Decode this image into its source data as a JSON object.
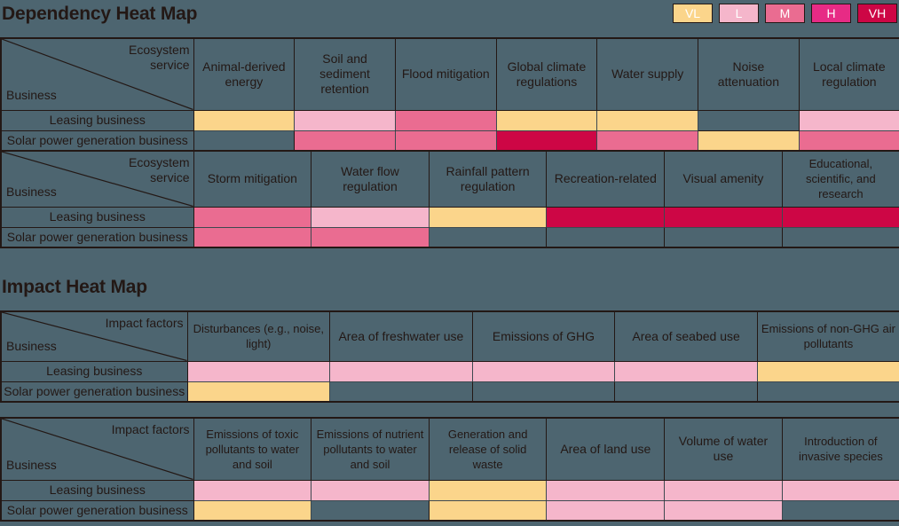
{
  "colors": {
    "background": "#4d6570",
    "VL": "#fbd58b",
    "L": "#f5b6cb",
    "M": "#ea6c91",
    "H": "#e72b85",
    "VH": "#cd0645",
    "none": "#4d6570",
    "text": "#231815"
  },
  "legend": [
    {
      "key": "VL",
      "label": "VL"
    },
    {
      "key": "L",
      "label": "L"
    },
    {
      "key": "M",
      "label": "M"
    },
    {
      "key": "H",
      "label": "H"
    },
    {
      "key": "VH",
      "label": "VH"
    }
  ],
  "dependency": {
    "title": "Dependency Heat Map",
    "corner_top": "Ecosystem service",
    "corner_bottom": "Business",
    "rows": [
      "Leasing business",
      "Solar power generation business"
    ]
  },
  "impact": {
    "title": "Impact Heat Map",
    "corner_top": "Impact factors",
    "corner_bottom": "Business",
    "rows": [
      "Leasing business",
      "Solar power generation business"
    ]
  },
  "chart_data": [
    {
      "type": "heatmap",
      "title": "Dependency Heat Map (part 1)",
      "xlabel": "Ecosystem service",
      "ylabel": "Business",
      "rows": [
        "Leasing business",
        "Solar power generation business"
      ],
      "columns": [
        "Animal-derived energy",
        "Soil and sediment retention",
        "Flood mitigation",
        "Global climate regulations",
        "Water supply",
        "Noise attenuation",
        "Local climate regulation"
      ],
      "values": [
        [
          "VL",
          "L",
          "M",
          "VL",
          "VL",
          "",
          "L"
        ],
        [
          "",
          "M",
          "M",
          "VH",
          "M",
          "VL",
          "M"
        ]
      ],
      "legend": [
        "VL",
        "L",
        "M",
        "H",
        "VH"
      ]
    },
    {
      "type": "heatmap",
      "title": "Dependency Heat Map (part 2)",
      "xlabel": "Ecosystem service",
      "ylabel": "Business",
      "rows": [
        "Leasing business",
        "Solar power generation business"
      ],
      "columns": [
        "Storm mitigation",
        "Water flow regulation",
        "Rainfall pattern regulation",
        "Recreation-related",
        "Visual amenity",
        "Educational, scientific, and research"
      ],
      "values": [
        [
          "M",
          "L",
          "VL",
          "VH",
          "VH",
          "VH"
        ],
        [
          "M",
          "M",
          "",
          "",
          "",
          ""
        ]
      ],
      "legend": [
        "VL",
        "L",
        "M",
        "H",
        "VH"
      ]
    },
    {
      "type": "heatmap",
      "title": "Impact Heat Map (part 1)",
      "xlabel": "Impact factors",
      "ylabel": "Business",
      "rows": [
        "Leasing business",
        "Solar power generation business"
      ],
      "columns": [
        "Disturbances (e.g., noise, light)",
        "Area of freshwater use",
        "Emissions of GHG",
        "Area of seabed use",
        "Emissions of non-GHG air pollutants"
      ],
      "values": [
        [
          "L",
          "L",
          "L",
          "L",
          "VL"
        ],
        [
          "VL",
          "",
          "",
          "",
          ""
        ]
      ],
      "legend": [
        "VL",
        "L",
        "M",
        "H",
        "VH"
      ]
    },
    {
      "type": "heatmap",
      "title": "Impact Heat Map (part 2)",
      "xlabel": "Impact factors",
      "ylabel": "Business",
      "rows": [
        "Leasing business",
        "Solar power generation business"
      ],
      "columns": [
        "Emissions of toxic pollutants to water and soil",
        "Emissions of nutrient pollutants to water and soil",
        "Generation and release of solid waste",
        "Area of land use",
        "Volume of water use",
        "Introduction of invasive species"
      ],
      "values": [
        [
          "L",
          "L",
          "VL",
          "L",
          "L",
          "L"
        ],
        [
          "VL",
          "",
          "VL",
          "L",
          "L",
          ""
        ]
      ],
      "legend": [
        "VL",
        "L",
        "M",
        "H",
        "VH"
      ]
    }
  ]
}
